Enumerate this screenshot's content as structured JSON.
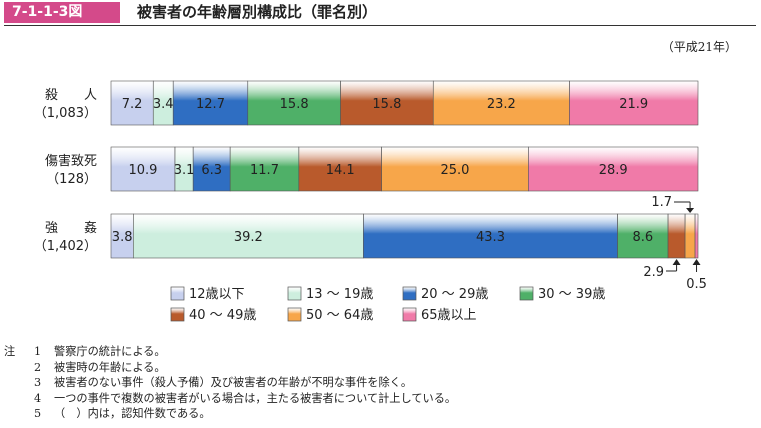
{
  "header": {
    "figure_number": "7-1-1-3図",
    "title": "被害者の年齢層別構成比（罪名別）",
    "year_note": "（平成21年）"
  },
  "chart_data": {
    "type": "bar",
    "orientation": "horizontal",
    "stacked": "percent",
    "categories": [
      {
        "name": "殺　　人",
        "count": "（1,083）"
      },
      {
        "name": "傷害致死",
        "count": "（128）"
      },
      {
        "name": "強　　姦",
        "count": "（1,402）"
      }
    ],
    "series": [
      {
        "name": "12歳以下",
        "color": "#c7d0ee",
        "values": [
          7.2,
          10.9,
          3.8
        ],
        "labels": [
          "7.2",
          "10.9",
          "3.8"
        ]
      },
      {
        "name": "13 ～ 19歳",
        "color": "#cdeede",
        "values": [
          3.4,
          3.1,
          39.2
        ],
        "labels": [
          "3.4",
          "3.1",
          "39.2"
        ]
      },
      {
        "name": "20 ～ 29歳",
        "color": "#2f6ec2",
        "values": [
          12.7,
          6.3,
          43.3
        ],
        "labels": [
          "12.7",
          "6.3",
          "43.3"
        ]
      },
      {
        "name": "30 ～ 39歳",
        "color": "#4fb068",
        "values": [
          15.8,
          11.7,
          8.6
        ],
        "labels": [
          "15.8",
          "11.7",
          "8.6"
        ]
      },
      {
        "name": "40 ～ 49歳",
        "color": "#b95a2c",
        "values": [
          15.8,
          14.1,
          2.9
        ],
        "labels": [
          "15.8",
          "14.1",
          "2.9"
        ]
      },
      {
        "name": "50 ～ 64歳",
        "color": "#f7a64a",
        "values": [
          23.2,
          25.0,
          1.7
        ],
        "labels": [
          "23.2",
          "25.0",
          "1.7"
        ]
      },
      {
        "name": "65歳以上",
        "color": "#f07aa8",
        "values": [
          21.9,
          28.9,
          0.5
        ],
        "labels": [
          "21.9",
          "28.9",
          "0.5"
        ]
      }
    ],
    "legend_position": "bottom",
    "grid": false
  },
  "notes": [
    {
      "lead": "注",
      "num": "1",
      "text": "警察庁の統計による。"
    },
    {
      "lead": "",
      "num": "2",
      "text": "被害時の年齢による。"
    },
    {
      "lead": "",
      "num": "3",
      "text": "被害者のない事件（殺人予備）及び被害者の年齢が不明な事件を除く。"
    },
    {
      "lead": "",
      "num": "4",
      "text": "一つの事件で複数の被害者がいる場合は，主たる被害者について計上している。"
    },
    {
      "lead": "",
      "num": "5",
      "text": "（　）内は，認知件数である。"
    }
  ]
}
